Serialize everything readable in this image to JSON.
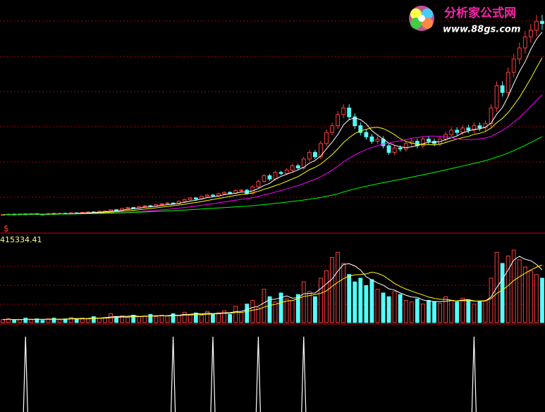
{
  "chart_data": {
    "type": "candlestick",
    "logo": {
      "name": "分析家公式网",
      "url": "www.88gs.com"
    },
    "marker": "$",
    "volume_label": "415334.41",
    "ylim": [
      0,
      103
    ],
    "closes": [
      8,
      8.2,
      7.9,
      8.3,
      8.1,
      8.4,
      8.2,
      8.0,
      8.5,
      8.3,
      8.6,
      8.4,
      8.8,
      8.7,
      9.0,
      9.2,
      9.1,
      9.5,
      9.6,
      10.2,
      10.0,
      10.8,
      11.2,
      11.0,
      11.6,
      12.0,
      11.8,
      12.5,
      12.9,
      13.2,
      13.0,
      14.0,
      14.8,
      15.5,
      15.0,
      16.2,
      16.8,
      16.5,
      17.4,
      18.0,
      17.6,
      18.8,
      19.0,
      17.5,
      20.5,
      23,
      25.5,
      24,
      27,
      26.5,
      28,
      30,
      29,
      33,
      36,
      34,
      40,
      45,
      48,
      53,
      56,
      52,
      48,
      45,
      43,
      41,
      42,
      39,
      36,
      38,
      37.5,
      40,
      41,
      39,
      42,
      41,
      40,
      42,
      44,
      46,
      45,
      47,
      46,
      48,
      47,
      49,
      56,
      66,
      63,
      72,
      78,
      83,
      88,
      91,
      95,
      94
    ],
    "vlim": [
      0,
      100
    ],
    "volumes": [
      4,
      5,
      3,
      4,
      6,
      4,
      5,
      3,
      5,
      6,
      4,
      5,
      7,
      5,
      6,
      5,
      8,
      6,
      7,
      12,
      8,
      9,
      7,
      10,
      8,
      9,
      11,
      8,
      10,
      9,
      12,
      10,
      14,
      11,
      13,
      10,
      15,
      12,
      13,
      16,
      11,
      22,
      14,
      25,
      30,
      20,
      45,
      35,
      28,
      40,
      32,
      30,
      38,
      55,
      42,
      35,
      60,
      70,
      88,
      95,
      80,
      65,
      55,
      60,
      50,
      58,
      45,
      40,
      35,
      42,
      38,
      30,
      28,
      32,
      25,
      30,
      28,
      26,
      35,
      30,
      28,
      33,
      30,
      25,
      28,
      30,
      60,
      95,
      80,
      90,
      98,
      85,
      75,
      70,
      65,
      60
    ],
    "signals": [
      4,
      30,
      37,
      45,
      53,
      83
    ]
  }
}
